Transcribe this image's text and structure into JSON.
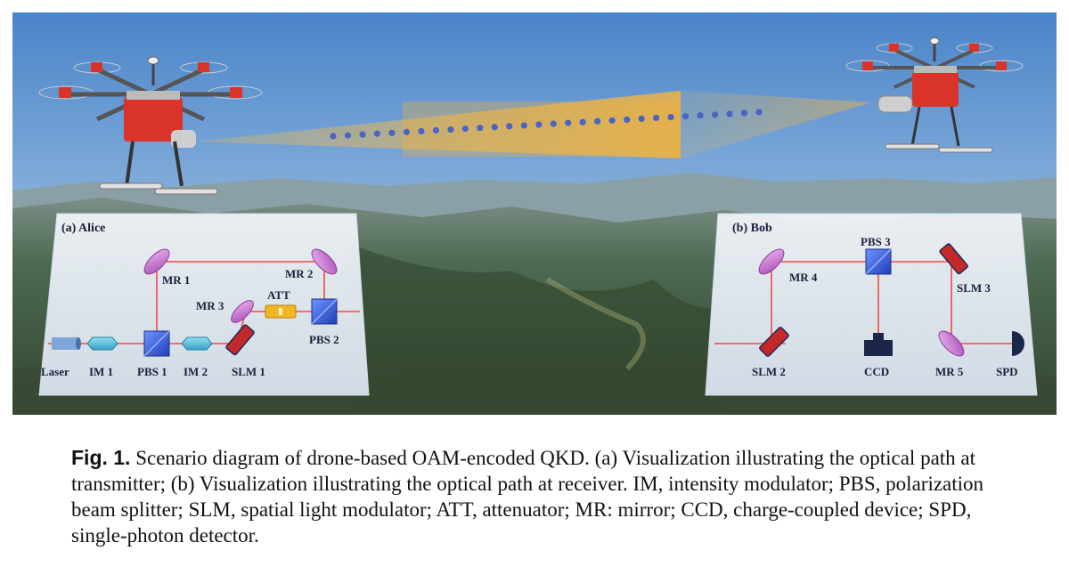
{
  "panels": {
    "alice": {
      "title": "(a) Alice",
      "labels": {
        "laser": "Laser",
        "im1": "IM 1",
        "pbs1": "PBS 1",
        "im2": "IM 2",
        "slm1": "SLM 1",
        "mr1": "MR 1",
        "mr2": "MR 2",
        "mr3": "MR 3",
        "att": "ATT",
        "pbs2": "PBS 2"
      }
    },
    "bob": {
      "title": "(b) Bob",
      "labels": {
        "pbs3": "PBS 3",
        "mr4": "MR 4",
        "slm3": "SLM 3",
        "slm2": "SLM 2",
        "ccd": "CCD",
        "mr5": "MR 5",
        "spd": "SPD"
      }
    }
  },
  "caption": {
    "label": "Fig. 1.",
    "text": "Scenario diagram of drone-based OAM-encoded QKD. (a) Visualization illustrating the optical path at transmitter; (b) Visualization illustrating the optical path at receiver. IM, intensity modulator; PBS, polarization beam splitter; SLM, spatial light modulator; ATT, attenuator; MR: mirror; CCD, charge-coupled device; SPD, single-photon detector."
  },
  "colors": {
    "sky_top": "#4c87cc",
    "sky_bottom": "#d6e3ee",
    "beam": "#f2b33d",
    "photon": "#4a64c4",
    "laser_line": "#ef4a4a",
    "drone_red": "#d9332a",
    "mirror": "#c96fd2",
    "pbs": "#2f5fe0",
    "att": "#f0b722"
  },
  "icons": [
    "drone-alice-icon",
    "drone-bob-icon",
    "laser-icon",
    "modulator-icon",
    "beam-splitter-icon",
    "mirror-icon",
    "slm-icon",
    "attenuator-icon",
    "ccd-icon",
    "spd-icon"
  ]
}
